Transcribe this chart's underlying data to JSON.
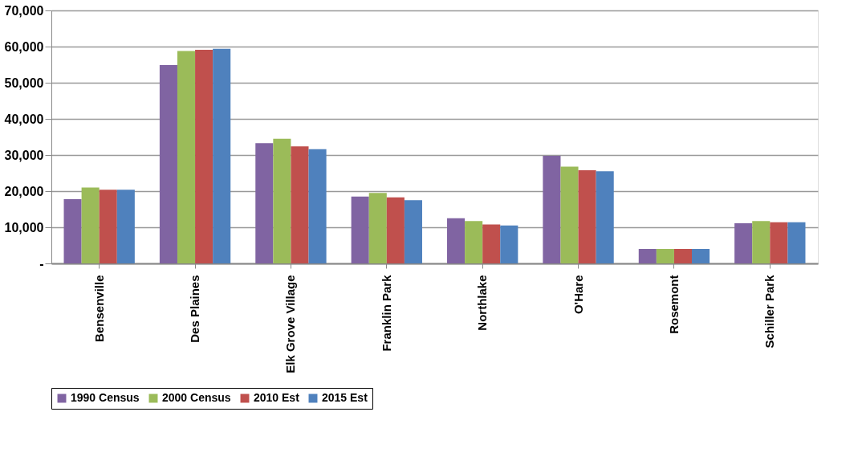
{
  "chart_data": {
    "type": "bar",
    "categories": [
      "Bensenville",
      "Des Plaines",
      "Elk Grove Village",
      "Franklin Park",
      "Northlake",
      "O'Hare",
      "Rosemont",
      "Schiller Park"
    ],
    "series": [
      {
        "name": "1990 Census",
        "color": "#8064a2",
        "values": [
          17800,
          54900,
          33300,
          18500,
          12500,
          29800,
          4000,
          11100
        ]
      },
      {
        "name": "2000 Census",
        "color": "#9bbb59",
        "values": [
          21000,
          58800,
          34500,
          19500,
          11700,
          26800,
          4000,
          11700
        ]
      },
      {
        "name": "2010 Est",
        "color": "#c0504d",
        "values": [
          20400,
          59100,
          32400,
          18300,
          10800,
          25800,
          4000,
          11400
        ]
      },
      {
        "name": "2015 Est",
        "color": "#4f81bd",
        "values": [
          20400,
          59400,
          31600,
          17500,
          10500,
          25500,
          4000,
          11400
        ]
      }
    ],
    "ylim": [
      0,
      70000
    ],
    "yticks": [
      {
        "value": 0,
        "label": "-"
      },
      {
        "value": 10000,
        "label": "10,000"
      },
      {
        "value": 20000,
        "label": "20,000"
      },
      {
        "value": 30000,
        "label": "30,000"
      },
      {
        "value": 40000,
        "label": "40,000"
      },
      {
        "value": 50000,
        "label": "50,000"
      },
      {
        "value": 60000,
        "label": "60,000"
      },
      {
        "value": 70000,
        "label": "70,000"
      }
    ],
    "grid": "y",
    "legend": "bottom"
  }
}
